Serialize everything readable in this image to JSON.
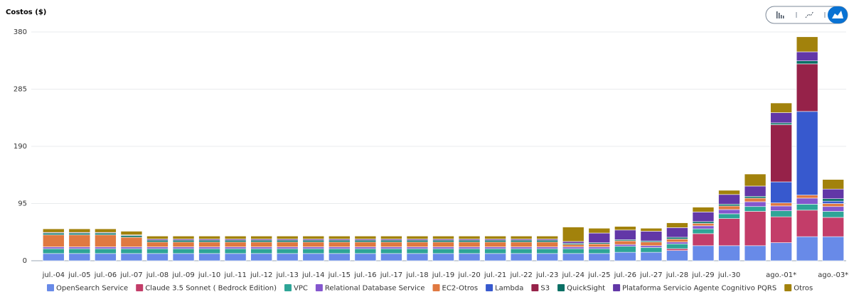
{
  "chart_data": {
    "type": "stacked-bar",
    "title": "Costos ($)",
    "categories": [
      "jul.-04",
      "jul.-05",
      "jul.-06",
      "jul.-07",
      "jul.-08",
      "jul.-09",
      "jul.-10",
      "jul.-11",
      "jul.-12",
      "jul.-13",
      "jul.-14",
      "jul.-15",
      "jul.-16",
      "jul.-17",
      "jul.-18",
      "jul.-19",
      "jul.-20",
      "jul.-21",
      "jul.-22",
      "jul.-23",
      "jul.-24",
      "jul.-25",
      "jul.-26",
      "jul.-27",
      "jul.-28",
      "jul.-29",
      "jul.-30",
      null,
      "ago.-01*",
      null,
      "ago.-03*"
    ],
    "ylim": [
      0,
      380
    ],
    "yticks": [
      0,
      95,
      190,
      285,
      380
    ],
    "grid": true,
    "series": [
      {
        "name": "OpenSearch Service",
        "color": "#688ae8",
        "values": [
          12,
          12,
          12,
          12,
          12,
          12,
          12,
          12,
          12,
          12,
          12,
          12,
          12,
          12,
          12,
          12,
          12,
          12,
          12,
          12,
          12,
          12,
          14,
          14,
          17,
          25,
          25,
          25,
          30,
          40,
          40
        ]
      },
      {
        "name": "Claude 3.5 Sonnet ( Bedrock Edition)",
        "color": "#c33d69",
        "values": [
          0,
          0,
          0,
          0,
          0,
          0,
          0,
          0,
          0,
          0,
          0,
          0,
          0,
          0,
          0,
          0,
          0,
          0,
          0,
          0,
          0,
          0,
          0,
          0,
          3,
          20,
          45,
          57,
          43,
          44,
          32
        ]
      },
      {
        "name": "VPC",
        "color": "#2ea597",
        "values": [
          8,
          8,
          8,
          8,
          8,
          8,
          8,
          8,
          8,
          8,
          8,
          8,
          8,
          8,
          8,
          8,
          8,
          8,
          8,
          8,
          8,
          8,
          10,
          8,
          8,
          8,
          8,
          8,
          10,
          10,
          10
        ]
      },
      {
        "name": "Relational Database Service",
        "color": "#8456ce",
        "values": [
          3,
          3,
          3,
          3,
          3,
          3,
          3,
          3,
          3,
          3,
          3,
          3,
          3,
          3,
          3,
          3,
          3,
          3,
          3,
          3,
          3,
          3,
          3,
          3,
          3,
          5,
          7,
          8,
          8,
          10,
          8
        ]
      },
      {
        "name": "EC2-Otros",
        "color": "#e07941",
        "values": [
          20,
          20,
          20,
          16,
          8,
          8,
          8,
          8,
          8,
          8,
          8,
          8,
          8,
          8,
          8,
          8,
          8,
          8,
          8,
          8,
          4,
          5,
          6,
          6,
          5,
          4,
          6,
          6,
          5,
          5,
          5
        ]
      },
      {
        "name": "Lambda",
        "color": "#3759ce",
        "values": [
          0,
          0,
          0,
          0,
          0,
          0,
          0,
          0,
          0,
          0,
          0,
          0,
          0,
          0,
          0,
          0,
          0,
          0,
          0,
          0,
          0,
          0,
          0,
          0,
          0,
          0,
          0,
          0,
          35,
          139,
          4
        ]
      },
      {
        "name": "S3",
        "color": "#962249",
        "values": [
          0,
          0,
          0,
          0,
          0,
          0,
          0,
          0,
          0,
          0,
          0,
          0,
          0,
          0,
          0,
          0,
          0,
          0,
          0,
          0,
          0,
          0,
          0,
          0,
          0,
          0,
          0,
          0,
          95,
          79,
          0
        ]
      },
      {
        "name": "QuickSight",
        "color": "#096f64",
        "values": [
          3,
          3,
          3,
          3,
          3,
          3,
          3,
          3,
          3,
          3,
          3,
          3,
          3,
          3,
          3,
          3,
          3,
          3,
          3,
          3,
          2,
          2,
          2,
          2,
          3,
          3,
          3,
          3,
          3,
          5,
          4
        ]
      },
      {
        "name": "Plataforma Servicio Agente Cognitivo PQRS",
        "color": "#6237a7",
        "values": [
          1,
          1,
          1,
          1,
          2,
          2,
          2,
          2,
          2,
          2,
          2,
          2,
          2,
          2,
          2,
          2,
          2,
          2,
          2,
          2,
          3,
          16,
          16,
          16,
          16,
          16,
          16,
          17,
          17,
          15,
          16
        ]
      },
      {
        "name": "Otros",
        "color": "#a2820c",
        "values": [
          6,
          6,
          6,
          6,
          5,
          5,
          5,
          5,
          5,
          5,
          5,
          5,
          5,
          5,
          5,
          5,
          5,
          5,
          5,
          5,
          24,
          8,
          6,
          5,
          8,
          8,
          7,
          20,
          16,
          25,
          16
        ]
      }
    ]
  }
}
